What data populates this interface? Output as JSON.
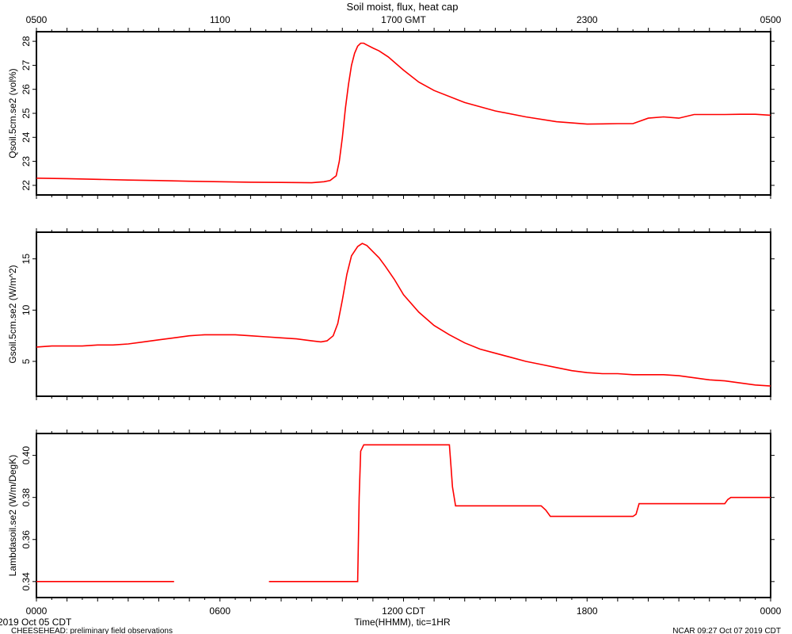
{
  "title": "Soil moist, flux, heat cap",
  "top_axis": {
    "ticks": [
      "0500",
      "1100",
      "1700 GMT",
      "2300",
      "0500"
    ]
  },
  "bottom_axis": {
    "ticks": [
      "0000",
      "0600",
      "1200 CDT",
      "1800",
      "0000"
    ],
    "xlabel": "Time(HHMM), tic=1HR",
    "start_label": "2019 Oct 05 CDT"
  },
  "footer": {
    "left": "CHEESEHEAD: preliminary field observations",
    "right": "NCAR 09:27 Oct 07 2019 CDT"
  },
  "colors": {
    "series": "#ff0000",
    "axes": "#000000"
  },
  "chart_data": [
    {
      "type": "line",
      "ylabel": "Qsoil.5cm.se2 (vol%)",
      "ylim": [
        21.6,
        28.4
      ],
      "yticks": [
        22,
        23,
        24,
        25,
        26,
        27,
        28
      ],
      "xlim": [
        0,
        24
      ],
      "series": [
        {
          "x": [
            0,
            1,
            2,
            3,
            4,
            5,
            6,
            7,
            8,
            9,
            9.4,
            9.6,
            9.8,
            9.9,
            10.0,
            10.1,
            10.2,
            10.3,
            10.4,
            10.5,
            10.6,
            10.7,
            10.8,
            11.0,
            11.2,
            11.5,
            12.0,
            12.5,
            13.0,
            14.0,
            15.0,
            16.0,
            17.0,
            18.0,
            19.0,
            19.5,
            20.0,
            20.5,
            21.0,
            21.5,
            22.0,
            22.5,
            23.0,
            23.5,
            24.0
          ],
          "y": [
            22.3,
            22.28,
            22.25,
            22.22,
            22.2,
            22.17,
            22.15,
            22.13,
            22.12,
            22.11,
            22.15,
            22.2,
            22.4,
            23.0,
            24.0,
            25.2,
            26.2,
            27.0,
            27.5,
            27.8,
            27.92,
            27.92,
            27.85,
            27.72,
            27.6,
            27.35,
            26.8,
            26.3,
            25.95,
            25.45,
            25.1,
            24.85,
            24.65,
            24.55,
            24.57,
            24.57,
            24.8,
            24.85,
            24.8,
            24.95,
            24.95,
            24.95,
            24.96,
            24.96,
            24.92
          ]
        }
      ]
    },
    {
      "type": "line",
      "ylabel": "Gsoil.5cm.se2 (W/m^2)",
      "ylim": [
        1.6,
        17.6
      ],
      "yticks": [
        5,
        10,
        15
      ],
      "xlim": [
        0,
        24
      ],
      "series": [
        {
          "x": [
            0,
            0.5,
            1,
            1.5,
            2,
            2.5,
            3,
            3.5,
            4,
            4.5,
            5,
            5.5,
            6,
            6.5,
            7,
            7.5,
            8,
            8.5,
            9,
            9.3,
            9.5,
            9.7,
            9.85,
            10.0,
            10.15,
            10.3,
            10.5,
            10.65,
            10.8,
            11.0,
            11.2,
            11.4,
            11.7,
            12.0,
            12.5,
            13.0,
            13.5,
            14.0,
            14.5,
            15.0,
            15.5,
            16.0,
            16.5,
            17.0,
            17.5,
            18.0,
            18.5,
            19.0,
            19.5,
            20.0,
            20.5,
            21.0,
            21.5,
            22.0,
            22.5,
            23.0,
            23.5,
            24.0
          ],
          "y": [
            6.4,
            6.5,
            6.5,
            6.5,
            6.6,
            6.6,
            6.7,
            6.9,
            7.1,
            7.3,
            7.5,
            7.6,
            7.6,
            7.6,
            7.5,
            7.4,
            7.3,
            7.2,
            7.0,
            6.9,
            7.0,
            7.5,
            8.7,
            11.0,
            13.5,
            15.3,
            16.2,
            16.5,
            16.3,
            15.7,
            15.1,
            14.3,
            13.0,
            11.5,
            9.8,
            8.5,
            7.6,
            6.8,
            6.2,
            5.8,
            5.4,
            5.0,
            4.7,
            4.4,
            4.1,
            3.9,
            3.8,
            3.8,
            3.7,
            3.7,
            3.7,
            3.6,
            3.4,
            3.2,
            3.1,
            2.9,
            2.7,
            2.6
          ]
        }
      ]
    },
    {
      "type": "line",
      "ylabel": "Lambdasoil.se2 (W/m/DegK)",
      "ylim": [
        0.3324,
        0.4104
      ],
      "yticks": [
        0.34,
        0.36,
        0.38,
        0.4
      ],
      "ytick_labels": [
        "0.34",
        "0.36",
        "0.38",
        "0.40"
      ],
      "xlim": [
        0,
        24
      ],
      "series": [
        {
          "x": [
            0,
            4.5
          ],
          "y": [
            0.34,
            0.34
          ]
        },
        {
          "x": [
            7.6,
            10.5,
            10.55,
            10.6,
            10.7,
            13.5,
            13.55,
            13.6,
            13.7,
            16.5,
            16.65,
            16.8,
            19.5,
            19.6,
            19.7,
            22.5,
            22.6,
            22.7,
            24.0
          ],
          "y": [
            0.34,
            0.34,
            0.38,
            0.402,
            0.405,
            0.405,
            0.395,
            0.385,
            0.376,
            0.376,
            0.374,
            0.371,
            0.371,
            0.372,
            0.377,
            0.377,
            0.379,
            0.38,
            0.38
          ]
        }
      ]
    }
  ]
}
